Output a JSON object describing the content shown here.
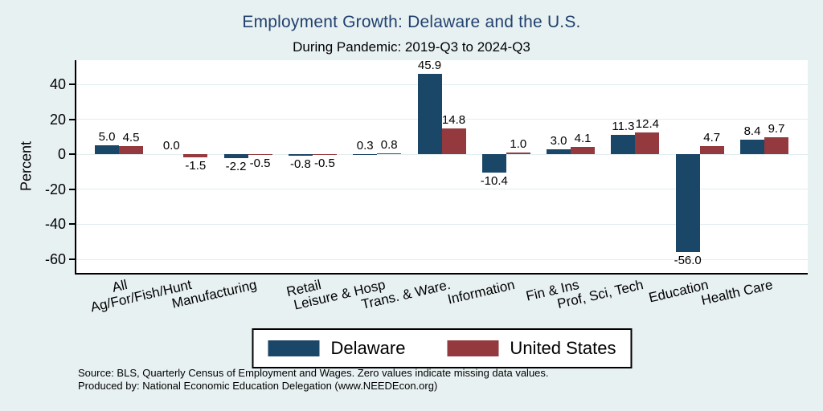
{
  "title": "Employment Growth: Delaware and the U.S.",
  "subtitle": "During Pandemic: 2019-Q3 to 2024-Q3",
  "chart_data": {
    "type": "bar",
    "title": "Employment Growth: Delaware and the U.S.",
    "subtitle": "During Pandemic: 2019-Q3 to 2024-Q3",
    "xlabel": "",
    "ylabel": "Percent",
    "categories": [
      "All",
      "Ag/For/Fish/Hunt",
      "Manufacturing",
      "Retail",
      "Leisure & Hosp",
      "Trans. & Ware.",
      "Information",
      "Fin & Ins",
      "Prof, Sci, Tech",
      "Education",
      "Health Care"
    ],
    "series": [
      {
        "name": "Delaware",
        "color": "#1a4668",
        "values": [
          5.0,
          0.0,
          -2.2,
          -0.8,
          0.3,
          45.9,
          -10.4,
          3.0,
          11.3,
          -56.0,
          8.4
        ]
      },
      {
        "name": "United States",
        "color": "#943a3e",
        "values": [
          4.5,
          -1.5,
          -0.5,
          -0.5,
          0.8,
          14.8,
          1.0,
          4.1,
          12.4,
          4.7,
          9.7
        ]
      }
    ],
    "yticks": [
      40,
      20,
      0,
      -20,
      -40,
      -60
    ],
    "ylim": [
      -67.8,
      53.8
    ],
    "grid": true,
    "value_labels": true,
    "legend_position": "bottom",
    "background_color": "#e8f1f2",
    "plot_background_color": "#ffffff",
    "title_color": "#21416e"
  },
  "notes": {
    "line1": "Source: BLS, Quarterly Census of Employment and Wages. Zero values indicate missing data values.",
    "line2": "Produced by: National Economic Education Delegation (www.NEEDEcon.org)"
  }
}
